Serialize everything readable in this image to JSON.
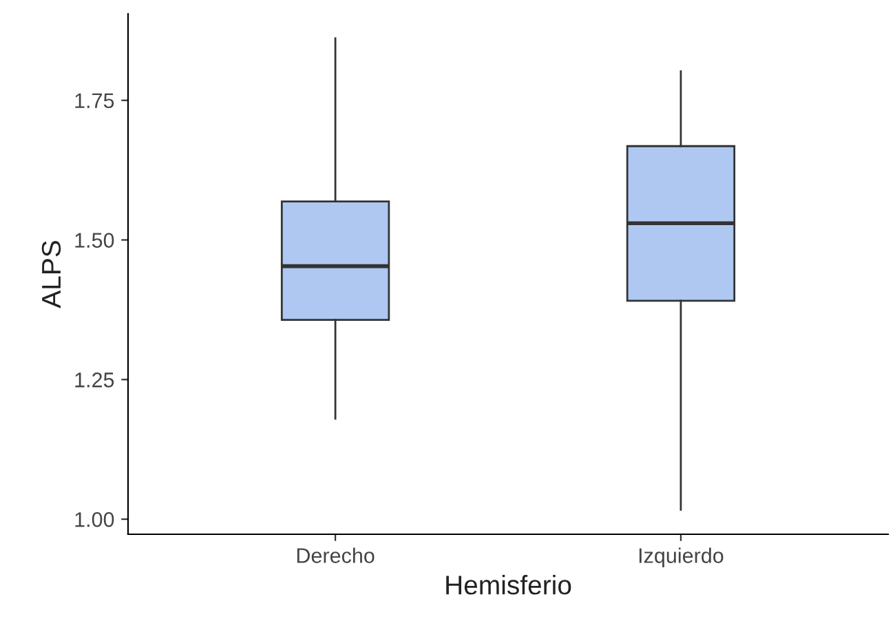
{
  "chart_data": {
    "type": "box",
    "xlabel": "Hemisferio",
    "ylabel": "ALPS",
    "categories": [
      "Derecho",
      "Izquierdo"
    ],
    "boxes": [
      {
        "low": 1.18,
        "q1": 1.357,
        "median": 1.453,
        "q3": 1.569,
        "high": 1.861
      },
      {
        "low": 1.017,
        "q1": 1.391,
        "median": 1.53,
        "q3": 1.668,
        "high": 1.802
      }
    ],
    "color": "#aec8f2",
    "ylim": [
      0.973,
      1.905
    ],
    "yticks": [
      {
        "value": 1.0,
        "label": "1.00"
      },
      {
        "value": 1.25,
        "label": "1.25"
      },
      {
        "value": 1.5,
        "label": "1.50"
      },
      {
        "value": 1.75,
        "label": "1.75"
      }
    ],
    "grid": false
  }
}
